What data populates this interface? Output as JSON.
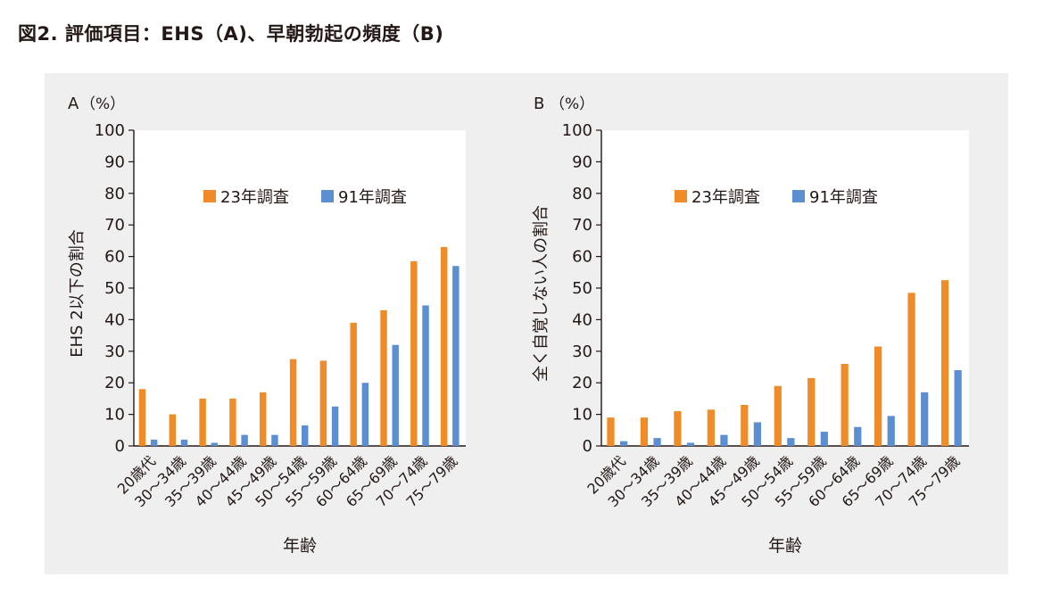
{
  "figure_title": "図2. 評価項目：EHS（A)、早朝勃起の頻度（B)",
  "colors": {
    "series_1": "#f08c28",
    "series_2": "#5b8fd1",
    "panel_bg": "#efefef",
    "plot_bg": "#ffffff"
  },
  "chart_data": [
    {
      "type": "bar",
      "panel_label": "A",
      "unit_label": "（%）",
      "ylabel": "EHS 2以下の割合",
      "xlabel": "年齢",
      "categories": [
        "20歳代",
        "30～34歳",
        "35～39歳",
        "40～44歳",
        "45～49歳",
        "50～54歳",
        "55～59歳",
        "60～64歳",
        "65～69歳",
        "70～74歳",
        "75～79歳"
      ],
      "series": [
        {
          "name": "23年調査",
          "color": "#f08c28",
          "values": [
            18,
            10,
            15,
            15,
            17,
            27.5,
            27,
            39,
            43,
            58.5,
            63
          ]
        },
        {
          "name": "91年調査",
          "color": "#5b8fd1",
          "values": [
            2,
            2,
            1,
            3.5,
            3.5,
            6.5,
            12.5,
            20,
            32,
            44.5,
            57
          ]
        }
      ],
      "ylim": [
        0,
        100
      ],
      "yticks": [
        0,
        10,
        20,
        30,
        40,
        50,
        60,
        70,
        80,
        90,
        100
      ],
      "legend": "top-center",
      "grid": false
    },
    {
      "type": "bar",
      "panel_label": "B",
      "unit_label": "（%）",
      "ylabel": "全く自覚しない人の割合",
      "xlabel": "年齢",
      "categories": [
        "20歳代",
        "30～34歳",
        "35～39歳",
        "40～44歳",
        "45～49歳",
        "50～54歳",
        "55～59歳",
        "60～64歳",
        "65～69歳",
        "70～74歳",
        "75～79歳"
      ],
      "series": [
        {
          "name": "23年調査",
          "color": "#f08c28",
          "values": [
            9,
            9,
            11,
            11.5,
            13,
            19,
            21.5,
            26,
            31.5,
            48.5,
            52.5
          ]
        },
        {
          "name": "91年調査",
          "color": "#5b8fd1",
          "values": [
            1.5,
            2.5,
            1,
            3.5,
            7.5,
            2.5,
            4.5,
            6,
            9.5,
            17,
            24
          ]
        }
      ],
      "ylim": [
        0,
        100
      ],
      "yticks": [
        0,
        10,
        20,
        30,
        40,
        50,
        60,
        70,
        80,
        90,
        100
      ],
      "legend": "top-center",
      "grid": false
    }
  ]
}
